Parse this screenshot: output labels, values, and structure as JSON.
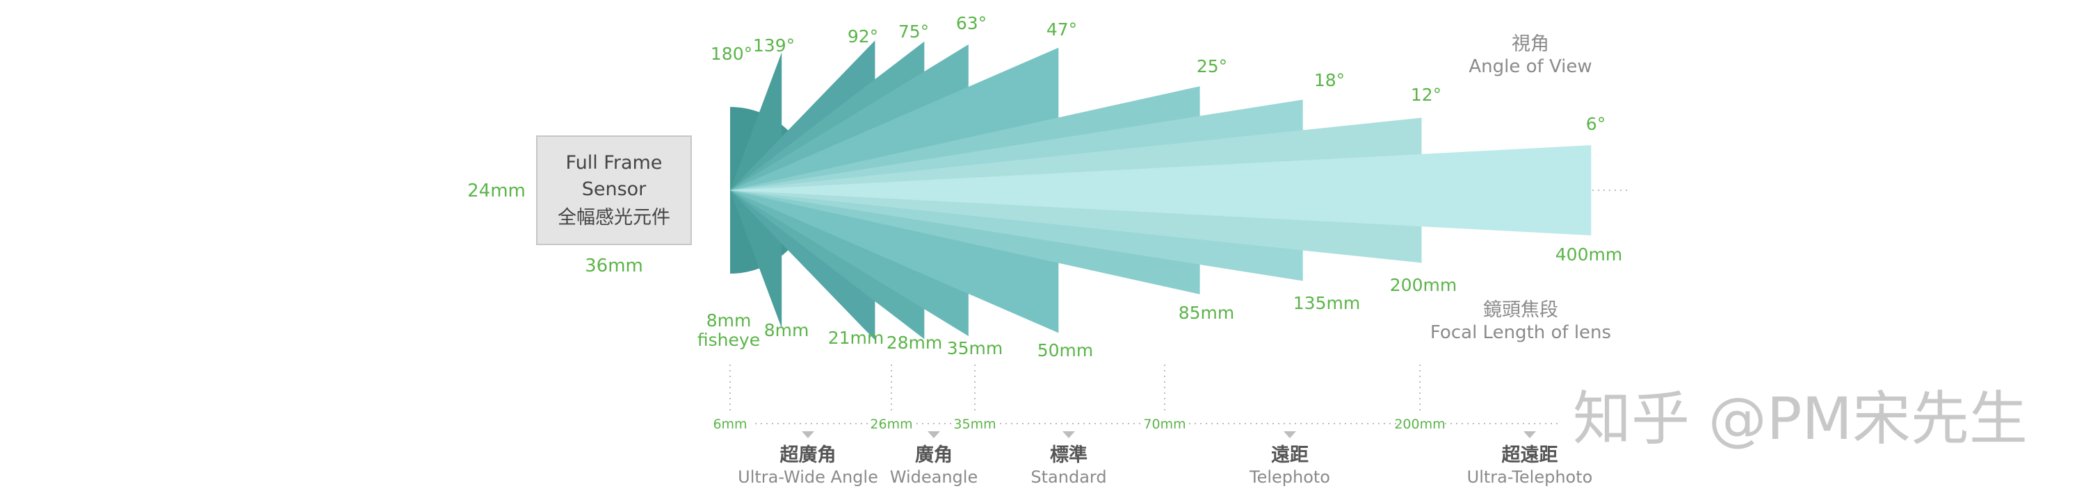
{
  "sensor": {
    "line1": "Full Frame",
    "line2": "Sensor",
    "line3": "全幅感光元件",
    "height_label": "24mm",
    "width_label": "36mm"
  },
  "legend": {
    "angle_title_zh": "視角",
    "angle_title_en": "Angle of View",
    "focal_title_zh": "鏡頭焦段",
    "focal_title_en": "Focal Length of lens"
  },
  "lenses": [
    {
      "angle_deg": 180,
      "angle_label": "180°",
      "focal_label": "8mm",
      "focal_sub": "fisheye",
      "color": "#439795"
    },
    {
      "angle_deg": 139,
      "angle_label": "139°",
      "focal_label": "8mm",
      "focal_sub": "",
      "color": "#4a9e9c"
    },
    {
      "angle_deg": 92,
      "angle_label": "92°",
      "focal_label": "21mm",
      "focal_sub": "",
      "color": "#54a7a6"
    },
    {
      "angle_deg": 75,
      "angle_label": "75°",
      "focal_label": "28mm",
      "focal_sub": "",
      "color": "#5eb0af"
    },
    {
      "angle_deg": 63,
      "angle_label": "63°",
      "focal_label": "35mm",
      "focal_sub": "",
      "color": "#68b8b8"
    },
    {
      "angle_deg": 47,
      "angle_label": "47°",
      "focal_label": "50mm",
      "focal_sub": "",
      "color": "#77c3c3"
    },
    {
      "angle_deg": 25,
      "angle_label": "25°",
      "focal_label": "85mm",
      "focal_sub": "",
      "color": "#89cdcd"
    },
    {
      "angle_deg": 18,
      "angle_label": "18°",
      "focal_label": "135mm",
      "focal_sub": "",
      "color": "#9ad7d6"
    },
    {
      "angle_deg": 12,
      "angle_label": "12°",
      "focal_label": "200mm",
      "focal_sub": "",
      "color": "#aadfde"
    },
    {
      "angle_deg": 6,
      "angle_label": "6°",
      "focal_label": "400mm",
      "focal_sub": "",
      "color": "#bce9e9"
    }
  ],
  "scale": {
    "ticks": [
      "6mm",
      "26mm",
      "35mm",
      "70mm",
      "200mm"
    ],
    "categories": [
      {
        "zh": "超廣角",
        "en": "Ultra-Wide Angle"
      },
      {
        "zh": "廣角",
        "en": "Wideangle"
      },
      {
        "zh": "標準",
        "en": "Standard"
      },
      {
        "zh": "遠距",
        "en": "Telephoto"
      },
      {
        "zh": "超遠距",
        "en": "Ultra-Telephoto"
      }
    ]
  },
  "watermark": "知乎 @PM宋先生"
}
